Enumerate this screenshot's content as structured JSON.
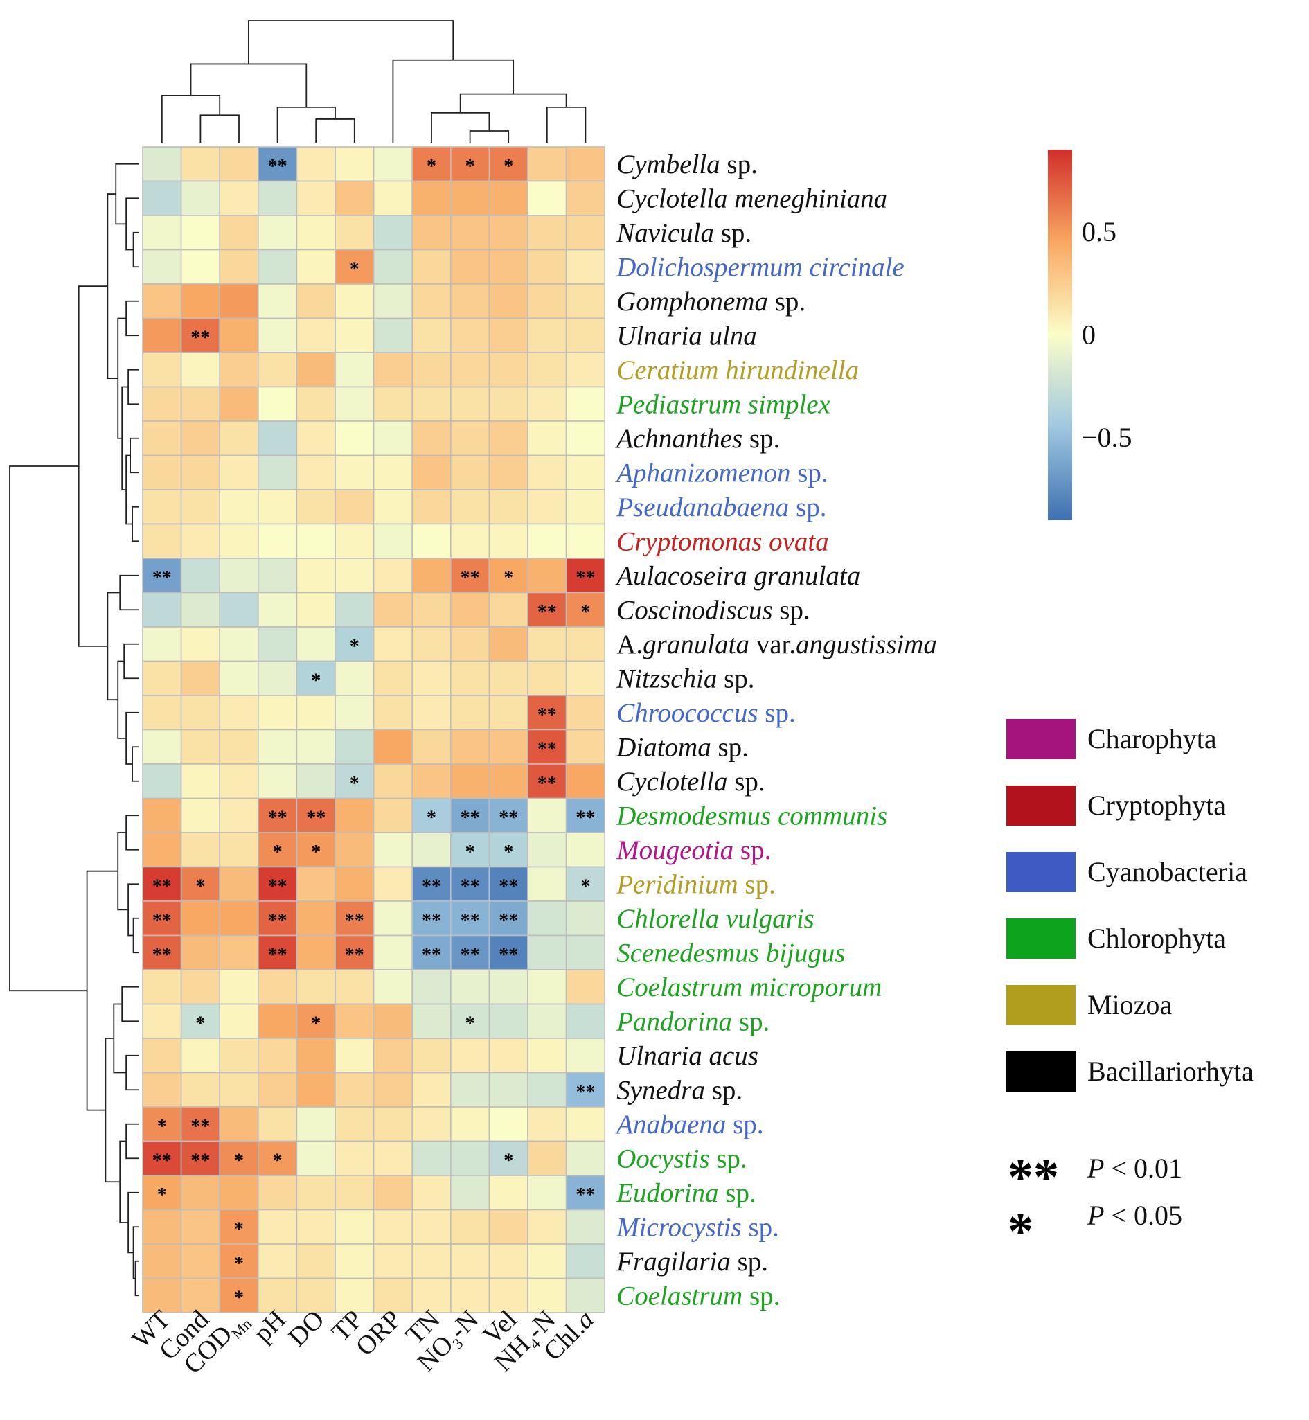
{
  "chart_data": {
    "type": "heatmap",
    "columns": [
      {
        "label": "WT"
      },
      {
        "label": "Cond"
      },
      {
        "label": "COD",
        "sub": "Mn"
      },
      {
        "label": "pH"
      },
      {
        "label": "DO"
      },
      {
        "label": "TP"
      },
      {
        "label": "ORP"
      },
      {
        "label": "TN"
      },
      {
        "label": "NO",
        "sub": "3",
        "post": "-N"
      },
      {
        "label": "Vel"
      },
      {
        "label": "NH",
        "sub": "4",
        "post": "-N"
      },
      {
        "label": "Chl.",
        "italic_post": "a"
      }
    ],
    "rows": [
      {
        "name": "Cymbella",
        "suffix": " sp.",
        "phylum": "Bacillariorhyta",
        "values": [
          -0.15,
          0.15,
          0.2,
          -0.7,
          0.1,
          0.05,
          -0.05,
          0.6,
          0.6,
          0.6,
          0.25,
          0.3
        ],
        "sig": [
          "",
          "",
          "",
          "**",
          "",
          "",
          "",
          "*",
          "*",
          "*",
          "",
          ""
        ]
      },
      {
        "name": "Cyclotella meneghiniana",
        "suffix": "",
        "phylum": "Bacillariorhyta",
        "values": [
          -0.3,
          -0.1,
          0.1,
          -0.2,
          0.1,
          0.3,
          0.05,
          0.4,
          0.4,
          0.4,
          0.0,
          0.25
        ],
        "sig": [
          "",
          "",
          "",
          "",
          "",
          "",
          "",
          "",
          "",
          "",
          "",
          ""
        ]
      },
      {
        "name": "Navicula",
        "suffix": " sp.",
        "phylum": "Bacillariorhyta",
        "values": [
          -0.05,
          0.0,
          0.2,
          -0.05,
          0.05,
          0.15,
          -0.25,
          0.3,
          0.3,
          0.3,
          0.2,
          0.2
        ],
        "sig": [
          "",
          "",
          "",
          "",
          "",
          "",
          "",
          "",
          "",
          "",
          "",
          ""
        ]
      },
      {
        "name": "Dolichospermum circinale",
        "suffix": "",
        "phylum": "Cyanobacteria",
        "values": [
          -0.1,
          0.0,
          0.2,
          -0.2,
          0.05,
          0.5,
          -0.2,
          0.2,
          0.3,
          0.3,
          0.2,
          0.1
        ],
        "sig": [
          "",
          "",
          "",
          "",
          "",
          "*",
          "",
          "",
          "",
          "",
          "",
          ""
        ]
      },
      {
        "name": "Gomphonema",
        "suffix": " sp.",
        "phylum": "Bacillariorhyta",
        "values": [
          0.3,
          0.45,
          0.5,
          -0.05,
          0.2,
          0.05,
          -0.1,
          0.2,
          0.25,
          0.3,
          0.2,
          0.15
        ],
        "sig": [
          "",
          "",
          "",
          "",
          "",
          "",
          "",
          "",
          "",
          "",
          "",
          ""
        ]
      },
      {
        "name": "Ulnaria ulna",
        "suffix": "",
        "phylum": "Bacillariorhyta",
        "values": [
          0.5,
          0.65,
          0.4,
          -0.05,
          0.1,
          0.05,
          -0.2,
          0.15,
          0.2,
          0.25,
          0.15,
          0.15
        ],
        "sig": [
          "",
          "**",
          "",
          "",
          "",
          "",
          "",
          "",
          "",
          "",
          "",
          ""
        ]
      },
      {
        "name": "Ceratium hirundinella",
        "suffix": "",
        "phylum": "Miozoa",
        "values": [
          0.15,
          0.05,
          0.25,
          0.15,
          0.35,
          -0.05,
          0.25,
          0.2,
          0.2,
          0.2,
          0.15,
          0.1
        ],
        "sig": [
          "",
          "",
          "",
          "",
          "",
          "",
          "",
          "",
          "",
          "",
          "",
          ""
        ]
      },
      {
        "name": "Pediastrum simplex",
        "suffix": "",
        "phylum": "Chlorophyta",
        "values": [
          0.2,
          0.2,
          0.35,
          0.0,
          0.15,
          -0.05,
          0.15,
          0.15,
          0.15,
          0.15,
          0.1,
          0.0
        ],
        "sig": [
          "",
          "",
          "",
          "",
          "",
          "",
          "",
          "",
          "",
          "",
          "",
          ""
        ]
      },
      {
        "name": "Achnanthes",
        "suffix": " sp.",
        "phylum": "Bacillariorhyta",
        "values": [
          0.2,
          0.25,
          0.15,
          -0.3,
          0.1,
          0.0,
          -0.05,
          0.25,
          0.2,
          0.25,
          0.05,
          0.0
        ],
        "sig": [
          "",
          "",
          "",
          "",
          "",
          "",
          "",
          "",
          "",
          "",
          "",
          ""
        ]
      },
      {
        "name": "Aphanizomenon",
        "suffix": " sp.",
        "phylum": "Cyanobacteria",
        "values": [
          0.2,
          0.2,
          0.1,
          -0.2,
          0.1,
          0.05,
          0.05,
          0.3,
          0.2,
          0.25,
          0.1,
          0.05
        ],
        "sig": [
          "",
          "",
          "",
          "",
          "",
          "",
          "",
          "",
          "",
          "",
          "",
          ""
        ]
      },
      {
        "name": "Pseudanabaena",
        "suffix": " sp.",
        "phylum": "Cyanobacteria",
        "values": [
          0.15,
          0.15,
          0.05,
          0.05,
          0.15,
          0.2,
          0.05,
          0.2,
          0.15,
          0.15,
          0.1,
          0.05
        ],
        "sig": [
          "",
          "",
          "",
          "",
          "",
          "",
          "",
          "",
          "",
          "",
          "",
          ""
        ]
      },
      {
        "name": "Cryptomonas ovata",
        "suffix": "",
        "phylum": "Cryptophyta",
        "values": [
          0.15,
          0.1,
          0.05,
          0.0,
          0.0,
          0.05,
          -0.05,
          0.0,
          0.05,
          0.05,
          0.0,
          0.0
        ],
        "sig": [
          "",
          "",
          "",
          "",
          "",
          "",
          "",
          "",
          "",
          "",
          "",
          ""
        ]
      },
      {
        "name": "Aulacoseira granulata",
        "suffix": "",
        "phylum": "Bacillariorhyta",
        "values": [
          -0.65,
          -0.25,
          -0.1,
          -0.15,
          0.05,
          0.05,
          0.1,
          0.4,
          0.6,
          0.45,
          0.4,
          0.85
        ],
        "sig": [
          "**",
          "",
          "",
          "",
          "",
          "",
          "",
          "",
          "**",
          "*",
          "",
          "**"
        ]
      },
      {
        "name": "Coscinodiscus",
        "suffix": " sp.",
        "phylum": "Bacillariorhyta",
        "values": [
          -0.3,
          -0.15,
          -0.3,
          -0.05,
          0.05,
          -0.25,
          0.25,
          0.2,
          0.3,
          0.2,
          0.7,
          0.55
        ],
        "sig": [
          "",
          "",
          "",
          "",
          "",
          "",
          "",
          "",
          "",
          "",
          "**",
          "*"
        ]
      },
      {
        "name": "A.granulata var.angustissima",
        "suffix": "",
        "phylum": "Bacillariorhyta",
        "values": [
          -0.05,
          0.05,
          -0.05,
          -0.2,
          -0.05,
          -0.35,
          0.1,
          0.15,
          0.2,
          0.35,
          0.15,
          0.15
        ],
        "sig": [
          "",
          "",
          "",
          "",
          "",
          "*",
          "",
          "",
          "",
          "",
          "",
          ""
        ]
      },
      {
        "name": "Nitzschia",
        "suffix": " sp.",
        "phylum": "Bacillariorhyta",
        "values": [
          0.15,
          0.25,
          -0.05,
          -0.1,
          -0.35,
          -0.05,
          0.15,
          0.1,
          0.15,
          0.15,
          0.15,
          0.1
        ],
        "sig": [
          "",
          "",
          "",
          "",
          "*",
          "",
          "",
          "",
          "",
          "",
          "",
          ""
        ]
      },
      {
        "name": "Chroococcus",
        "suffix": " sp.",
        "phylum": "Cyanobacteria",
        "values": [
          0.15,
          0.15,
          0.1,
          0.05,
          0.05,
          -0.05,
          0.15,
          0.1,
          0.15,
          0.15,
          0.7,
          0.2
        ],
        "sig": [
          "",
          "",
          "",
          "",
          "",
          "",
          "",
          "",
          "",
          "",
          "**",
          ""
        ]
      },
      {
        "name": "Diatoma",
        "suffix": " sp.",
        "phylum": "Bacillariorhyta",
        "values": [
          -0.05,
          0.15,
          0.15,
          -0.05,
          -0.05,
          -0.25,
          0.45,
          0.2,
          0.3,
          0.3,
          0.75,
          0.2
        ],
        "sig": [
          "",
          "",
          "",
          "",
          "",
          "",
          "",
          "",
          "",
          "",
          "**",
          ""
        ]
      },
      {
        "name": "Cyclotella",
        "suffix": " sp.",
        "phylum": "Bacillariorhyta",
        "values": [
          -0.25,
          0.05,
          0.1,
          -0.05,
          -0.15,
          -0.3,
          0.2,
          0.3,
          0.4,
          0.4,
          0.75,
          0.45
        ],
        "sig": [
          "",
          "",
          "",
          "",
          "",
          "*",
          "",
          "",
          "",
          "",
          "**",
          ""
        ]
      },
      {
        "name": "Desmodesmus communis",
        "suffix": "",
        "phylum": "Chlorophyta",
        "values": [
          0.4,
          0.05,
          0.1,
          0.65,
          0.65,
          0.4,
          0.2,
          -0.4,
          -0.6,
          -0.55,
          -0.05,
          -0.55
        ],
        "sig": [
          "",
          "",
          "",
          "**",
          "**",
          "",
          "",
          "*",
          "**",
          "**",
          "",
          "**"
        ]
      },
      {
        "name": "Mougeotia",
        "suffix": " sp.",
        "phylum": "Charophyta",
        "values": [
          0.4,
          0.15,
          0.15,
          0.55,
          0.5,
          0.35,
          -0.05,
          -0.1,
          -0.35,
          -0.35,
          -0.1,
          -0.05
        ],
        "sig": [
          "",
          "",
          "",
          "*",
          "*",
          "",
          "",
          "",
          "*",
          "*",
          "",
          ""
        ]
      },
      {
        "name": "Peridinium",
        "suffix": " sp.",
        "phylum": "Miozoa",
        "values": [
          0.85,
          0.6,
          0.35,
          0.85,
          0.3,
          0.4,
          0.1,
          -0.75,
          -0.75,
          -0.8,
          -0.05,
          -0.3
        ],
        "sig": [
          "**",
          "*",
          "",
          "**",
          "",
          "",
          "",
          "**",
          "**",
          "**",
          "",
          "*"
        ]
      },
      {
        "name": "Chlorella vulgaris",
        "suffix": "",
        "phylum": "Chlorophyta",
        "values": [
          0.7,
          0.45,
          0.45,
          0.7,
          0.4,
          0.6,
          -0.05,
          -0.55,
          -0.55,
          -0.6,
          -0.2,
          -0.15
        ],
        "sig": [
          "**",
          "",
          "",
          "**",
          "",
          "**",
          "",
          "**",
          "**",
          "**",
          "",
          ""
        ]
      },
      {
        "name": "Scenedesmus bijugus",
        "suffix": "",
        "phylum": "Chlorophyta",
        "values": [
          0.7,
          0.35,
          0.3,
          0.8,
          0.4,
          0.65,
          -0.05,
          -0.6,
          -0.7,
          -0.8,
          -0.2,
          -0.2
        ],
        "sig": [
          "**",
          "",
          "",
          "**",
          "",
          "**",
          "",
          "**",
          "**",
          "**",
          "",
          ""
        ]
      },
      {
        "name": "Coelastrum microporum",
        "suffix": "",
        "phylum": "Chlorophyta",
        "values": [
          0.15,
          0.2,
          0.05,
          0.2,
          0.15,
          0.15,
          -0.05,
          -0.15,
          -0.1,
          -0.1,
          -0.05,
          0.2
        ],
        "sig": [
          "",
          "",
          "",
          "",
          "",
          "",
          "",
          "",
          "",
          "",
          "",
          ""
        ]
      },
      {
        "name": "Pandorina",
        "suffix": "  sp.",
        "phylum": "Chlorophyta",
        "values": [
          0.1,
          -0.25,
          0.05,
          0.45,
          0.5,
          0.3,
          0.35,
          -0.15,
          -0.2,
          -0.2,
          -0.1,
          -0.25
        ],
        "sig": [
          "",
          "*",
          "",
          "",
          "*",
          "",
          "",
          "",
          "*",
          "",
          "",
          ""
        ]
      },
      {
        "name": "Ulnaria acus",
        "suffix": "",
        "phylum": "Bacillariorhyta",
        "values": [
          0.2,
          0.05,
          0.15,
          0.2,
          0.4,
          0.05,
          0.25,
          0.15,
          0.1,
          0.1,
          0.05,
          -0.05
        ],
        "sig": [
          "",
          "",
          "",
          "",
          "",
          "",
          "",
          "",
          "",
          "",
          "",
          ""
        ]
      },
      {
        "name": "Synedra",
        "suffix": " sp.",
        "phylum": "Bacillariorhyta",
        "values": [
          0.25,
          0.15,
          0.15,
          0.25,
          0.4,
          0.2,
          0.25,
          0.1,
          -0.15,
          -0.15,
          -0.2,
          -0.5
        ],
        "sig": [
          "",
          "",
          "",
          "",
          "",
          "",
          "",
          "",
          "",
          "",
          "",
          "**"
        ]
      },
      {
        "name": "Anabaena",
        "suffix": " sp.",
        "phylum": "Cyanobacteria",
        "values": [
          0.55,
          0.65,
          0.35,
          0.15,
          -0.05,
          0.15,
          0.15,
          0.1,
          0.05,
          0.0,
          0.1,
          0.05
        ],
        "sig": [
          "*",
          "**",
          "",
          "",
          "",
          "",
          "",
          "",
          "",
          "",
          "",
          ""
        ]
      },
      {
        "name": "Oocystis",
        "suffix": " sp.",
        "phylum": "Chlorophyta",
        "values": [
          0.8,
          0.75,
          0.55,
          0.5,
          -0.05,
          0.1,
          0.1,
          -0.2,
          -0.2,
          -0.3,
          0.2,
          -0.1
        ],
        "sig": [
          "**",
          "**",
          "*",
          "*",
          "",
          "",
          "",
          "",
          "",
          "*",
          "",
          ""
        ]
      },
      {
        "name": "Eudorina",
        "suffix": " sp.",
        "phylum": "Chlorophyta",
        "values": [
          0.45,
          0.35,
          0.4,
          0.2,
          0.15,
          0.15,
          0.25,
          0.1,
          -0.15,
          0.05,
          -0.05,
          -0.55
        ],
        "sig": [
          "*",
          "",
          "",
          "",
          "",
          "",
          "",
          "",
          "",
          "",
          "",
          "**"
        ]
      },
      {
        "name": "Microcystis",
        "suffix": " sp.",
        "phylum": "Cyanobacteria",
        "values": [
          0.35,
          0.3,
          0.5,
          0.1,
          0.1,
          0.05,
          0.1,
          0.1,
          0.15,
          0.2,
          0.1,
          -0.15
        ],
        "sig": [
          "",
          "",
          "*",
          "",
          "",
          "",
          "",
          "",
          "",
          "",
          "",
          ""
        ]
      },
      {
        "name": "Fragilaria",
        "suffix": " sp.",
        "phylum": "Bacillariorhyta",
        "values": [
          0.35,
          0.3,
          0.5,
          0.1,
          0.15,
          0.05,
          0.1,
          0.1,
          0.1,
          0.1,
          0.05,
          -0.25
        ],
        "sig": [
          "",
          "",
          "*",
          "",
          "",
          "",
          "",
          "",
          "",
          "",
          "",
          ""
        ]
      },
      {
        "name": "Coelastrum",
        "suffix": "  sp.",
        "phylum": "Chlorophyta",
        "values": [
          0.35,
          0.3,
          0.5,
          0.15,
          0.15,
          0.05,
          0.15,
          0.1,
          0.1,
          0.1,
          0.05,
          -0.15
        ],
        "sig": [
          "",
          "",
          "*",
          "",
          "",
          "",
          "",
          "",
          "",
          "",
          "",
          ""
        ]
      }
    ],
    "value_range": [
      -0.9,
      0.9
    ],
    "colorbar": {
      "ticks": [
        0.5,
        0,
        -0.5
      ],
      "tick_labels": [
        "0.5",
        "0",
        "−0.5"
      ]
    },
    "legend": [
      {
        "label": "Charophyta",
        "color": "#a4147c"
      },
      {
        "label": "Cryptophyta",
        "color": "#b2121b"
      },
      {
        "label": "Cyanobacteria",
        "color": "#3d5bc2"
      },
      {
        "label": "Chlorophyta",
        "color": "#0da31c"
      },
      {
        "label": "Miozoa",
        "color": "#b09e1c"
      },
      {
        "label": "Bacillariorhyta",
        "color": "#000000"
      }
    ],
    "significance": [
      {
        "symbol": "**",
        "p_label": "P",
        "text": " < 0.01"
      },
      {
        "symbol": "*",
        "p_label": "P",
        "text": " < 0.05"
      }
    ]
  },
  "phylum_text_colors": {
    "Charophyta": "#b1168c",
    "Cryptophyta": "#c8201f",
    "Cyanobacteria": "#4468c8",
    "Chlorophyta": "#1ca31f",
    "Miozoa": "#b39e22",
    "Bacillariorhyta": "#111111"
  },
  "scale_colors": [
    "#3e6fb0",
    "#9fc7e0",
    "#fbfdc8",
    "#f9a863",
    "#d22e2a"
  ]
}
